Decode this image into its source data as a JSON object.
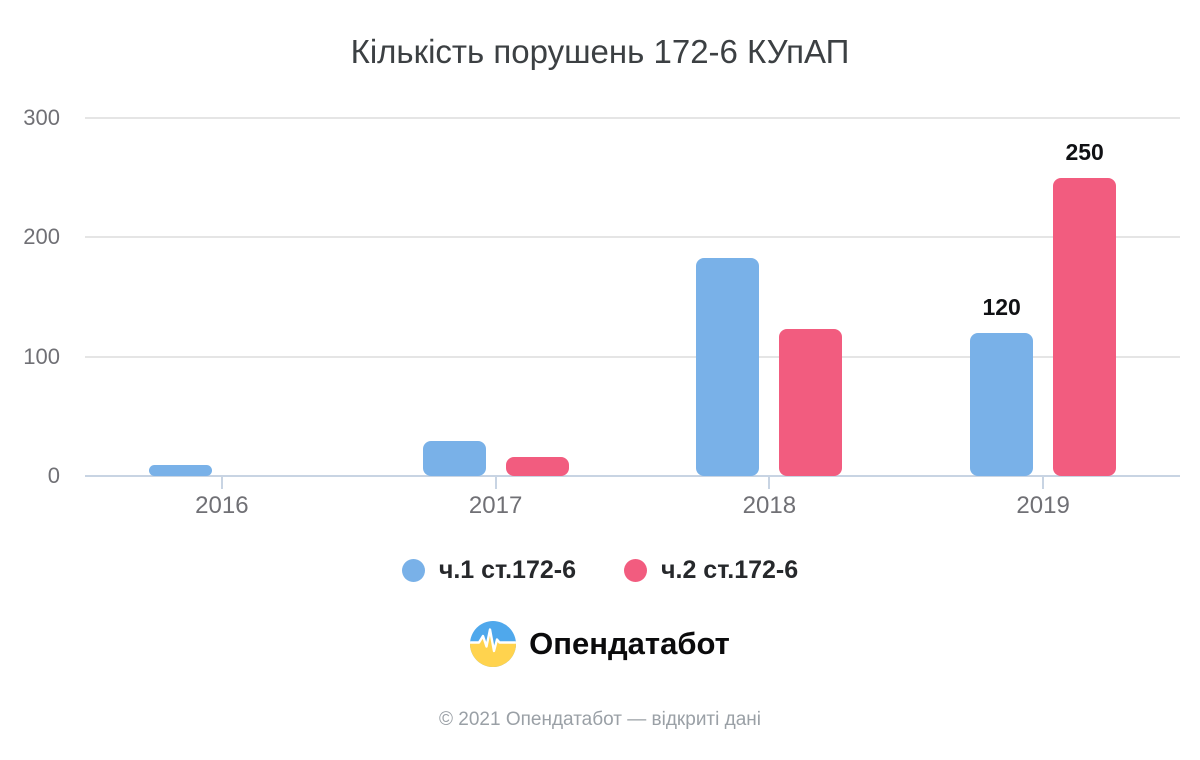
{
  "logo": {
    "text": "Опендатабот",
    "colors": {
      "blue": "#4FA8EC",
      "yellow": "#FFD34E"
    }
  },
  "footer": {
    "copyright": "© 2021 Опендатабот — відкриті дані"
  },
  "chart_data": {
    "type": "bar",
    "title": "Кількість порушень 172-6 КУпАП",
    "categories": [
      "2016",
      "2017",
      "2018",
      "2019"
    ],
    "series": [
      {
        "name": "ч.1 ст.172-6",
        "color": "#79B1E8",
        "values": [
          9,
          29,
          183,
          120
        ],
        "labels": [
          "",
          "",
          "",
          "120"
        ]
      },
      {
        "name": "ч.2 ст.172-6",
        "color": "#F25C7F",
        "values": [
          0,
          16,
          123,
          250
        ],
        "labels": [
          "",
          "",
          "",
          "250"
        ]
      }
    ],
    "y_ticks": [
      0,
      100,
      200,
      300
    ],
    "ylim": [
      0,
      300
    ],
    "grid": true,
    "legend_position": "bottom",
    "axis_color": "#C8D4E3",
    "gridline_color": "#E5E5E5"
  }
}
